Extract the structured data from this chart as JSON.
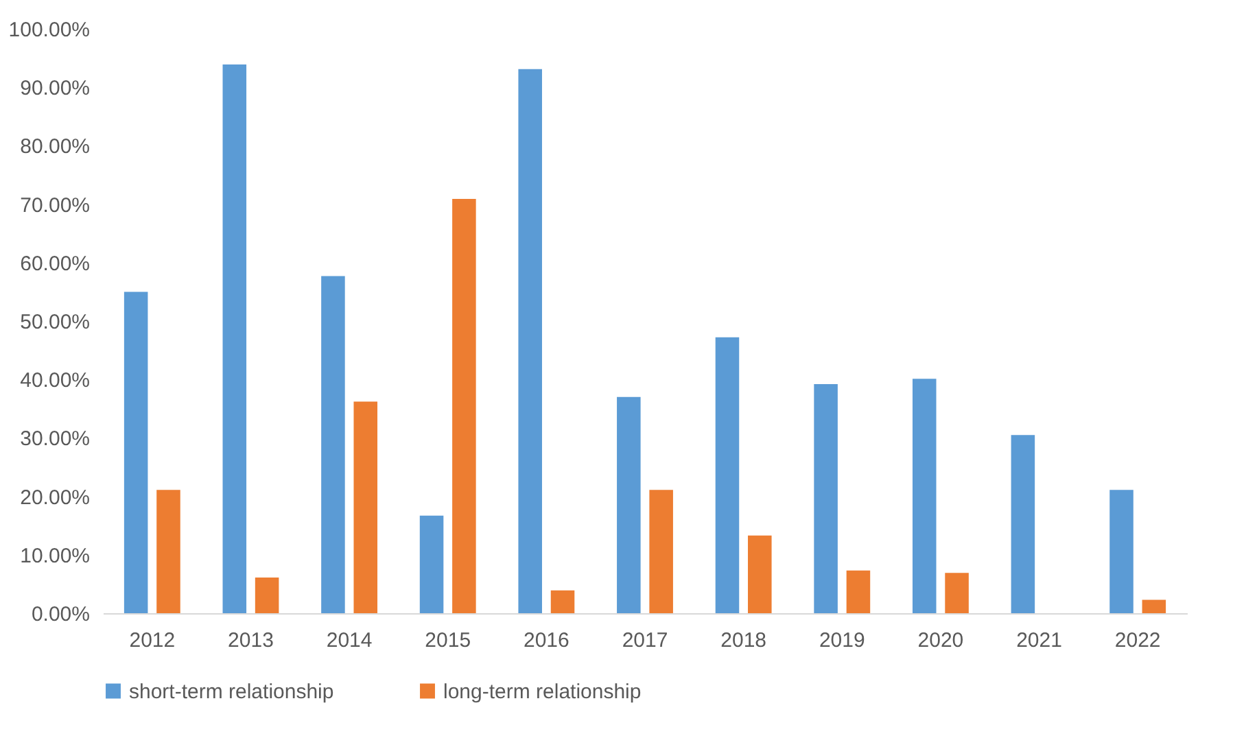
{
  "chart_data": {
    "type": "bar",
    "categories": [
      "2012",
      "2013",
      "2014",
      "2015",
      "2016",
      "2017",
      "2018",
      "2019",
      "2020",
      "2021",
      "2022"
    ],
    "series": [
      {
        "name": "short-term relationship",
        "color": "#5b9bd5",
        "values": [
          55.0,
          93.9,
          57.7,
          16.7,
          93.1,
          37.0,
          47.2,
          39.2,
          40.1,
          30.5,
          21.1
        ]
      },
      {
        "name": "long-term relationship",
        "color": "#ed7d31",
        "values": [
          21.1,
          6.1,
          36.2,
          70.9,
          3.9,
          21.1,
          13.3,
          7.3,
          6.9,
          null,
          2.3
        ]
      }
    ],
    "ylim": [
      0,
      100
    ],
    "yticks": [
      {
        "value": 0,
        "label": "0.00%"
      },
      {
        "value": 10,
        "label": "10.00%"
      },
      {
        "value": 20,
        "label": "20.00%"
      },
      {
        "value": 30,
        "label": "30.00%"
      },
      {
        "value": 40,
        "label": "40.00%"
      },
      {
        "value": 50,
        "label": "50.00%"
      },
      {
        "value": 60,
        "label": "60.00%"
      },
      {
        "value": 70,
        "label": "70.00%"
      },
      {
        "value": 80,
        "label": "80.00%"
      },
      {
        "value": 90,
        "label": "90.00%"
      },
      {
        "value": 100,
        "label": "100.00%"
      }
    ],
    "grid": false,
    "legend": "bottom"
  }
}
